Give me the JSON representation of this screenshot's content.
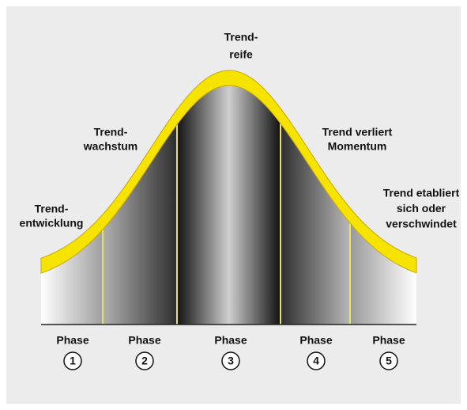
{
  "phases": [
    {
      "label": [
        "Trend-",
        "entwicklung"
      ],
      "name": "Phase",
      "number": 1
    },
    {
      "label": [
        "Trend-",
        "wachstum"
      ],
      "name": "Phase",
      "number": 2
    },
    {
      "label": [
        "Trend-",
        "reife"
      ],
      "name": "Phase",
      "number": 3
    },
    {
      "label": [
        "Trend verliert",
        "Momentum"
      ],
      "name": "Phase",
      "number": 4
    },
    {
      "label": [
        "Trend etabliert",
        "sich oder",
        "verschwindet"
      ],
      "name": "Phase",
      "number": 5
    }
  ]
}
